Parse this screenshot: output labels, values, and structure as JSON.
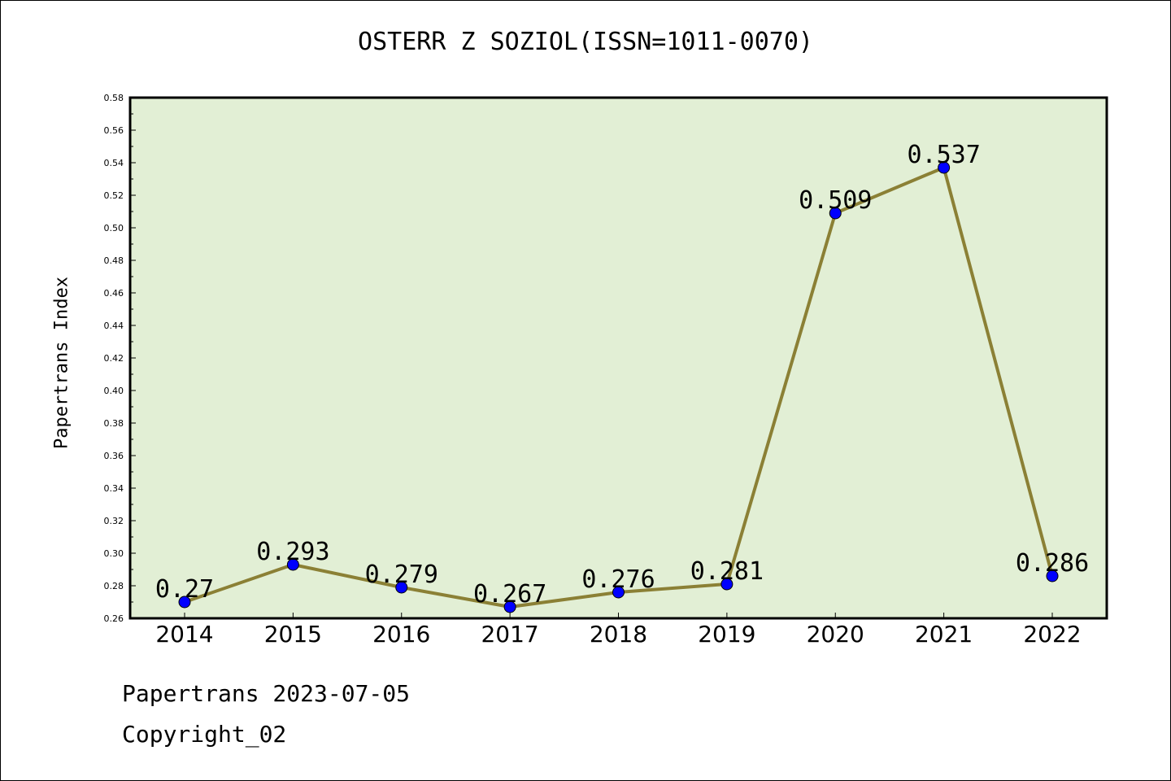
{
  "chart_data": {
    "type": "line",
    "title": "OSTERR Z SOZIOL(ISSN=1011-0070)",
    "xlabel": "",
    "ylabel": "Papertrans Index",
    "x": [
      "2014",
      "2015",
      "2016",
      "2017",
      "2018",
      "2019",
      "2020",
      "2021",
      "2022"
    ],
    "series": [
      {
        "values": [
          0.27,
          0.293,
          0.279,
          0.267,
          0.276,
          0.281,
          0.509,
          0.537,
          0.286
        ],
        "labels": [
          "0.27",
          "0.293",
          "0.279",
          "0.267",
          "0.276",
          "0.281",
          "0.509",
          "0.537",
          "0.286"
        ]
      }
    ],
    "ylim": [
      0.26,
      0.58
    ],
    "yticks": [
      "0.26",
      "0.28",
      "0.30",
      "0.32",
      "0.34",
      "0.36",
      "0.38",
      "0.40",
      "0.42",
      "0.44",
      "0.46",
      "0.48",
      "0.50",
      "0.52",
      "0.54",
      "0.56",
      "0.58"
    ],
    "grid": false,
    "colors": {
      "plot_bg": "#e2efd5",
      "line": "#8b8035",
      "marker": "#0000ff"
    }
  },
  "footer": {
    "line1": "Papertrans 2023-07-05",
    "line2": "Copyright_02"
  }
}
